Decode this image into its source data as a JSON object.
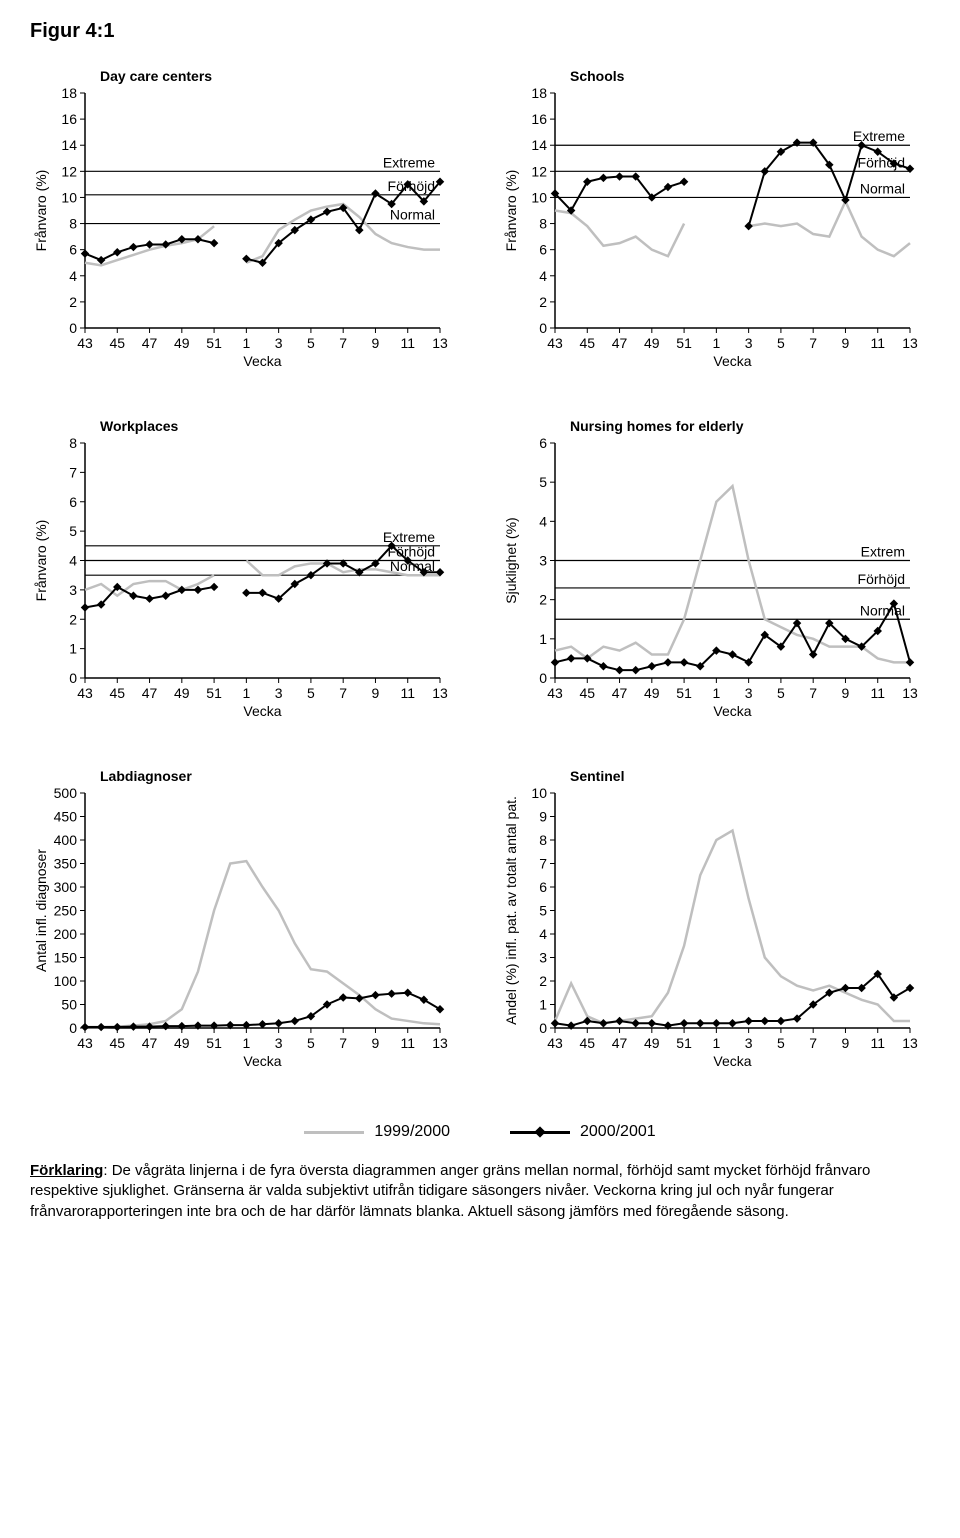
{
  "figure_title": "Figur 4:1",
  "xticks": [
    43,
    45,
    47,
    49,
    51,
    1,
    3,
    5,
    7,
    9,
    11,
    13
  ],
  "x_all": [
    43,
    44,
    45,
    46,
    47,
    48,
    49,
    50,
    51,
    52,
    1,
    2,
    3,
    4,
    5,
    6,
    7,
    8,
    9,
    10,
    11,
    12,
    13
  ],
  "xlabel": "Vecka",
  "colors": {
    "gray": "#bfbfbf",
    "black": "#000000",
    "bg": "#ffffff"
  },
  "legend": {
    "a": "1999/2000",
    "b": "2000/2001"
  },
  "panels": {
    "daycare": {
      "title": "Day care centers",
      "ylabel": "Frånvaro (%)",
      "ymax": 18,
      "ystep": 2,
      "thresh": [
        {
          "y": 8,
          "label": "Normal"
        },
        {
          "y": 12,
          "label": "Extreme"
        },
        {
          "y": 10.2,
          "label": "Förhöjd"
        }
      ],
      "gray": [
        [
          43,
          5.0
        ],
        [
          44,
          4.8
        ],
        [
          45,
          5.2
        ],
        [
          46,
          5.6
        ],
        [
          47,
          6.0
        ],
        [
          48,
          6.3
        ],
        [
          49,
          6.5
        ],
        [
          50,
          6.8
        ],
        [
          51,
          7.8
        ],
        [
          1,
          5.0
        ],
        [
          2,
          5.5
        ],
        [
          3,
          7.5
        ],
        [
          4,
          8.3
        ],
        [
          5,
          9.0
        ],
        [
          6,
          9.3
        ],
        [
          7,
          9.5
        ],
        [
          8,
          8.5
        ],
        [
          9,
          7.2
        ],
        [
          10,
          6.5
        ],
        [
          11,
          6.2
        ],
        [
          12,
          6.0
        ],
        [
          13,
          6.0
        ]
      ],
      "black": [
        [
          43,
          5.7
        ],
        [
          44,
          5.2
        ],
        [
          45,
          5.8
        ],
        [
          46,
          6.2
        ],
        [
          47,
          6.4
        ],
        [
          48,
          6.4
        ],
        [
          49,
          6.8
        ],
        [
          50,
          6.8
        ],
        [
          51,
          6.5
        ],
        [
          1,
          5.3
        ],
        [
          2,
          5.0
        ],
        [
          3,
          6.5
        ],
        [
          4,
          7.5
        ],
        [
          5,
          8.3
        ],
        [
          6,
          8.9
        ],
        [
          7,
          9.2
        ],
        [
          8,
          7.5
        ],
        [
          9,
          10.3
        ],
        [
          10,
          9.5
        ],
        [
          11,
          11.0
        ],
        [
          12,
          9.7
        ],
        [
          13,
          11.2
        ]
      ]
    },
    "schools": {
      "title": "Schools",
      "ylabel": "Frånvaro (%)",
      "ymax": 18,
      "ystep": 2,
      "thresh": [
        {
          "y": 10,
          "label": "Normal"
        },
        {
          "y": 14,
          "label": "Extreme"
        },
        {
          "y": 12,
          "label": "Förhöjd"
        }
      ],
      "gray": [
        [
          43,
          9.0
        ],
        [
          44,
          8.8
        ],
        [
          45,
          7.8
        ],
        [
          46,
          6.3
        ],
        [
          47,
          6.5
        ],
        [
          48,
          7.0
        ],
        [
          49,
          6.0
        ],
        [
          50,
          5.5
        ],
        [
          51,
          8.0
        ],
        [
          3,
          7.8
        ],
        [
          4,
          8.0
        ],
        [
          5,
          7.8
        ],
        [
          6,
          8.0
        ],
        [
          7,
          7.2
        ],
        [
          8,
          7.0
        ],
        [
          9,
          9.7
        ],
        [
          10,
          7.0
        ],
        [
          11,
          6.0
        ],
        [
          12,
          5.5
        ],
        [
          13,
          6.5
        ]
      ],
      "black": [
        [
          43,
          10.3
        ],
        [
          44,
          9.0
        ],
        [
          45,
          11.2
        ],
        [
          46,
          11.5
        ],
        [
          47,
          11.6
        ],
        [
          48,
          11.6
        ],
        [
          49,
          10.0
        ],
        [
          50,
          10.8
        ],
        [
          51,
          11.2
        ],
        [
          3,
          7.8
        ],
        [
          4,
          12.0
        ],
        [
          5,
          13.5
        ],
        [
          6,
          14.2
        ],
        [
          7,
          14.2
        ],
        [
          8,
          12.5
        ],
        [
          9,
          9.8
        ],
        [
          10,
          14.0
        ],
        [
          11,
          13.5
        ],
        [
          12,
          12.6
        ],
        [
          13,
          12.2
        ]
      ]
    },
    "work": {
      "title": "Workplaces",
      "ylabel": "Frånvaro (%)",
      "ymax": 8,
      "ystep": 1,
      "thresh": [
        {
          "y": 3.5,
          "label": "Normal"
        },
        {
          "y": 4.5,
          "label": "Extreme"
        },
        {
          "y": 4.0,
          "label": "Förhöjd"
        }
      ],
      "gray": [
        [
          43,
          3.0
        ],
        [
          44,
          3.2
        ],
        [
          45,
          2.8
        ],
        [
          46,
          3.2
        ],
        [
          47,
          3.3
        ],
        [
          48,
          3.3
        ],
        [
          49,
          3.0
        ],
        [
          50,
          3.2
        ],
        [
          51,
          3.5
        ],
        [
          1,
          4.0
        ],
        [
          2,
          3.5
        ],
        [
          3,
          3.5
        ],
        [
          4,
          3.8
        ],
        [
          5,
          3.9
        ],
        [
          6,
          3.9
        ],
        [
          7,
          3.6
        ],
        [
          8,
          3.7
        ],
        [
          9,
          3.7
        ],
        [
          10,
          3.6
        ],
        [
          11,
          3.5
        ],
        [
          12,
          3.5
        ],
        [
          13,
          3.5
        ]
      ],
      "black": [
        [
          43,
          2.4
        ],
        [
          44,
          2.5
        ],
        [
          45,
          3.1
        ],
        [
          46,
          2.8
        ],
        [
          47,
          2.7
        ],
        [
          48,
          2.8
        ],
        [
          49,
          3.0
        ],
        [
          50,
          3.0
        ],
        [
          51,
          3.1
        ],
        [
          1,
          2.9
        ],
        [
          2,
          2.9
        ],
        [
          3,
          2.7
        ],
        [
          4,
          3.2
        ],
        [
          5,
          3.5
        ],
        [
          6,
          3.9
        ],
        [
          7,
          3.9
        ],
        [
          8,
          3.6
        ],
        [
          9,
          3.9
        ],
        [
          10,
          4.5
        ],
        [
          11,
          4.0
        ],
        [
          12,
          3.6
        ],
        [
          13,
          3.6
        ]
      ]
    },
    "nursing": {
      "title": "Nursing homes for elderly",
      "ylabel": "Sjuklighet (%)",
      "ymax": 6,
      "ystep": 1,
      "thresh": [
        {
          "y": 1.5,
          "label": "Normal"
        },
        {
          "y": 3.0,
          "label": "Extrem"
        },
        {
          "y": 2.3,
          "label": "Förhöjd"
        }
      ],
      "gray": [
        [
          43,
          0.7
        ],
        [
          44,
          0.8
        ],
        [
          45,
          0.5
        ],
        [
          46,
          0.8
        ],
        [
          47,
          0.7
        ],
        [
          48,
          0.9
        ],
        [
          49,
          0.6
        ],
        [
          50,
          0.6
        ],
        [
          51,
          1.5
        ],
        [
          52,
          3.0
        ],
        [
          1,
          4.5
        ],
        [
          2,
          4.9
        ],
        [
          3,
          3.0
        ],
        [
          4,
          1.5
        ],
        [
          5,
          1.3
        ],
        [
          6,
          1.1
        ],
        [
          7,
          1.0
        ],
        [
          8,
          0.8
        ],
        [
          9,
          0.8
        ],
        [
          10,
          0.8
        ],
        [
          11,
          0.5
        ],
        [
          12,
          0.4
        ],
        [
          13,
          0.4
        ]
      ],
      "black": [
        [
          43,
          0.4
        ],
        [
          44,
          0.5
        ],
        [
          45,
          0.5
        ],
        [
          46,
          0.3
        ],
        [
          47,
          0.2
        ],
        [
          48,
          0.2
        ],
        [
          49,
          0.3
        ],
        [
          50,
          0.4
        ],
        [
          51,
          0.4
        ],
        [
          52,
          0.3
        ],
        [
          1,
          0.7
        ],
        [
          2,
          0.6
        ],
        [
          3,
          0.4
        ],
        [
          4,
          1.1
        ],
        [
          5,
          0.8
        ],
        [
          6,
          1.4
        ],
        [
          7,
          0.6
        ],
        [
          8,
          1.4
        ],
        [
          9,
          1.0
        ],
        [
          10,
          0.8
        ],
        [
          11,
          1.2
        ],
        [
          12,
          1.9
        ],
        [
          13,
          0.4
        ]
      ]
    },
    "lab": {
      "title": "Labdiagnoser",
      "ylabel": "Antal infl. diagnoser",
      "ymax": 500,
      "ystep": 50,
      "gray": [
        [
          43,
          2
        ],
        [
          44,
          2
        ],
        [
          45,
          3
        ],
        [
          46,
          5
        ],
        [
          47,
          8
        ],
        [
          48,
          15
        ],
        [
          49,
          40
        ],
        [
          50,
          120
        ],
        [
          51,
          250
        ],
        [
          52,
          350
        ],
        [
          1,
          355
        ],
        [
          2,
          300
        ],
        [
          3,
          250
        ],
        [
          4,
          180
        ],
        [
          5,
          125
        ],
        [
          6,
          120
        ],
        [
          7,
          95
        ],
        [
          8,
          70
        ],
        [
          9,
          40
        ],
        [
          10,
          20
        ],
        [
          11,
          15
        ],
        [
          12,
          10
        ],
        [
          13,
          8
        ]
      ],
      "black": [
        [
          43,
          2
        ],
        [
          44,
          2
        ],
        [
          45,
          2
        ],
        [
          46,
          3
        ],
        [
          47,
          3
        ],
        [
          48,
          4
        ],
        [
          49,
          4
        ],
        [
          50,
          5
        ],
        [
          51,
          5
        ],
        [
          52,
          6
        ],
        [
          1,
          6
        ],
        [
          2,
          8
        ],
        [
          3,
          10
        ],
        [
          4,
          15
        ],
        [
          5,
          25
        ],
        [
          6,
          50
        ],
        [
          7,
          65
        ],
        [
          8,
          63
        ],
        [
          9,
          70
        ],
        [
          10,
          73
        ],
        [
          11,
          75
        ],
        [
          12,
          60
        ],
        [
          13,
          40
        ]
      ]
    },
    "sentinel": {
      "title": "Sentinel",
      "ylabel": "Andel (%) infl. pat. av totalt antal pat.",
      "ymax": 10,
      "ystep": 1,
      "gray": [
        [
          43,
          0.3
        ],
        [
          44,
          1.9
        ],
        [
          45,
          0.5
        ],
        [
          46,
          0.2
        ],
        [
          47,
          0.3
        ],
        [
          48,
          0.4
        ],
        [
          49,
          0.5
        ],
        [
          50,
          1.5
        ],
        [
          51,
          3.5
        ],
        [
          52,
          6.5
        ],
        [
          1,
          8.0
        ],
        [
          2,
          8.4
        ],
        [
          3,
          5.5
        ],
        [
          4,
          3.0
        ],
        [
          5,
          2.2
        ],
        [
          6,
          1.8
        ],
        [
          7,
          1.6
        ],
        [
          8,
          1.8
        ],
        [
          9,
          1.5
        ],
        [
          10,
          1.2
        ],
        [
          11,
          1.0
        ],
        [
          12,
          0.3
        ],
        [
          13,
          0.3
        ]
      ],
      "black": [
        [
          43,
          0.2
        ],
        [
          44,
          0.1
        ],
        [
          45,
          0.3
        ],
        [
          46,
          0.2
        ],
        [
          47,
          0.3
        ],
        [
          48,
          0.2
        ],
        [
          49,
          0.2
        ],
        [
          50,
          0.1
        ],
        [
          51,
          0.2
        ],
        [
          52,
          0.2
        ],
        [
          1,
          0.2
        ],
        [
          2,
          0.2
        ],
        [
          3,
          0.3
        ],
        [
          4,
          0.3
        ],
        [
          5,
          0.3
        ],
        [
          6,
          0.4
        ],
        [
          7,
          1.0
        ],
        [
          8,
          1.5
        ],
        [
          9,
          1.7
        ],
        [
          10,
          1.7
        ],
        [
          11,
          2.3
        ],
        [
          12,
          1.3
        ],
        [
          13,
          1.7
        ]
      ]
    }
  },
  "explanation": {
    "label": "Förklaring",
    "body": ": De vågräta linjerna i de fyra översta diagrammen anger gräns mellan normal, förhöjd samt mycket förhöjd frånvaro respektive sjuklighet. Gränserna är valda subjektivt utifrån tidigare säsongers nivåer. Veckorna kring jul och nyår fungerar frånvarorapporteringen inte bra och de har därför lämnats blanka. Aktuell säsong jämförs med föregående säsong."
  }
}
